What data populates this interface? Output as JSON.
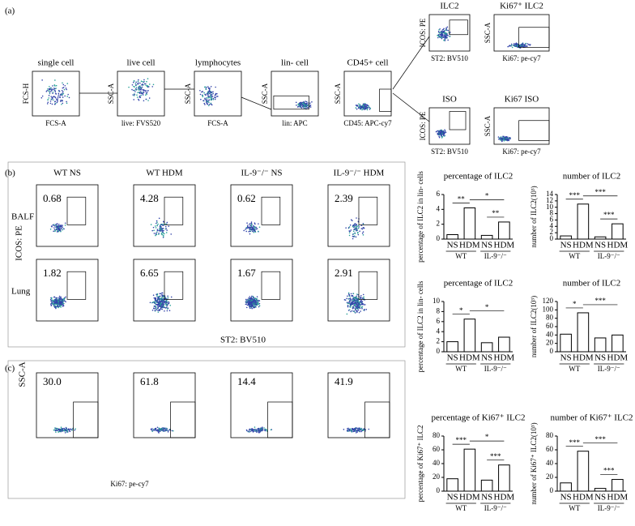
{
  "panel_labels": [
    "(a)",
    "(b)",
    "(c)"
  ],
  "gating": [
    {
      "title": "single cell",
      "x_label": "FCS-A",
      "y_label": "FCS-H"
    },
    {
      "title": "live cell",
      "x_label": "live: FVS520",
      "y_label": "SSC-A"
    },
    {
      "title": "lymphocytes",
      "x_label": "FCS-A",
      "y_label": "SSC-A"
    },
    {
      "title": "lin- cell",
      "x_label": "lin: APC",
      "y_label": "SSC-A"
    },
    {
      "title": "CD45+ cell",
      "x_label": "CD45: APC-cy7",
      "y_label": "SSC-A"
    },
    {
      "title": "ILC2",
      "x_label": "ST2: BV510",
      "y_label": "ICOS: PE"
    },
    {
      "title": "Ki67⁺ ILC2",
      "x_label": "Ki67: pe-cy7",
      "y_label": "SSC-A"
    },
    {
      "title": "ISO",
      "x_label": "ST2: BV510",
      "y_label": "ICOS: PE"
    },
    {
      "title": "Ki67 ISO",
      "x_label": "Ki67: pe-cy7",
      "y_label": "SSC-A"
    }
  ],
  "panel_b": {
    "columns": [
      "WT NS",
      "WT HDM",
      "IL-9⁻/⁻ NS",
      "IL-9⁻/⁻ HDM"
    ],
    "rows": [
      "BALF",
      "Lung"
    ],
    "percentages": [
      [
        "0.68",
        "4.28",
        "0.62",
        "2.39"
      ],
      [
        "1.82",
        "6.65",
        "1.67",
        "2.91"
      ]
    ],
    "y_label": "ICOS: PE",
    "x_label": "ST2: BV510"
  },
  "panel_c": {
    "percentages": [
      "30.0",
      "61.8",
      "14.4",
      "41.9"
    ],
    "y_label": "SSC-A",
    "x_label": "Ki67: pe-cy7"
  },
  "chart_data": [
    {
      "type": "bar",
      "title": "percentage of ILC2",
      "y_label": "percentage of ILC2 in lin- cells",
      "categories": [
        "NS",
        "HDM",
        "NS",
        "HDM"
      ],
      "groups": [
        "WT",
        "IL-9⁻/⁻"
      ],
      "values": [
        0.6,
        4.2,
        0.5,
        2.3
      ],
      "color": "#000000",
      "ylim": [
        0,
        6
      ],
      "yticks": [
        0,
        2,
        4,
        6
      ],
      "significance": [
        "**",
        "*",
        "**"
      ]
    },
    {
      "type": "bar",
      "title": "number of ILC2",
      "y_label": "number of ILC2(10³)",
      "categories": [
        "NS",
        "HDM",
        "NS",
        "HDM"
      ],
      "groups": [
        "WT",
        "IL-9⁻/⁻"
      ],
      "values": [
        1.0,
        11.0,
        0.7,
        4.8
      ],
      "color": "#000000",
      "ylim": [
        0,
        14
      ],
      "yticks": [
        0,
        2,
        4,
        6,
        8,
        10,
        12,
        14
      ],
      "significance": [
        "***",
        "***",
        "***"
      ]
    },
    {
      "type": "bar",
      "title": "percentage of ILC2",
      "y_label": "percentage of ILC2 in lin- cells",
      "categories": [
        "NS",
        "HDM",
        "NS",
        "HDM"
      ],
      "groups": [
        "WT",
        "IL-9⁻/⁻"
      ],
      "values": [
        2.0,
        6.5,
        1.8,
        2.9
      ],
      "color": "#000000",
      "ylim": [
        0,
        10
      ],
      "yticks": [
        0,
        2,
        4,
        6,
        8,
        10
      ],
      "significance": [
        "*",
        "*"
      ]
    },
    {
      "type": "bar",
      "title": "number of ILC2",
      "y_label": "number of ILC2(10³)",
      "categories": [
        "NS",
        "HDM",
        "NS",
        "HDM"
      ],
      "groups": [
        "WT",
        "IL-9⁻/⁻"
      ],
      "values": [
        42,
        93,
        33,
        40
      ],
      "color": "#000000",
      "ylim": [
        0,
        120
      ],
      "yticks": [
        0,
        20,
        40,
        60,
        80,
        100,
        120
      ],
      "significance": [
        "*",
        "***"
      ]
    },
    {
      "type": "bar",
      "title": "percentage of Ki67⁺ ILC2",
      "y_label": "percentage of Ki67⁺ ILC2",
      "categories": [
        "NS",
        "HDM",
        "NS",
        "HDM"
      ],
      "groups": [
        "WT",
        "IL-9⁻/⁻"
      ],
      "values": [
        18,
        61,
        16,
        38
      ],
      "color": "#000000",
      "ylim": [
        0,
        80
      ],
      "yticks": [
        0,
        20,
        40,
        60,
        80
      ],
      "significance": [
        "***",
        "*",
        "***"
      ]
    },
    {
      "type": "bar",
      "title": "number of Ki67⁺ ILC2",
      "y_label": "number of Ki67⁺ ILC2(10³)",
      "categories": [
        "NS",
        "HDM",
        "NS",
        "HDM"
      ],
      "groups": [
        "WT",
        "IL-9⁻/⁻"
      ],
      "values": [
        12,
        58,
        4,
        17
      ],
      "color": "#000000",
      "ylim": [
        0,
        80
      ],
      "yticks": [
        0,
        20,
        40,
        60,
        80
      ],
      "significance": [
        "***",
        "***",
        "***"
      ]
    }
  ]
}
